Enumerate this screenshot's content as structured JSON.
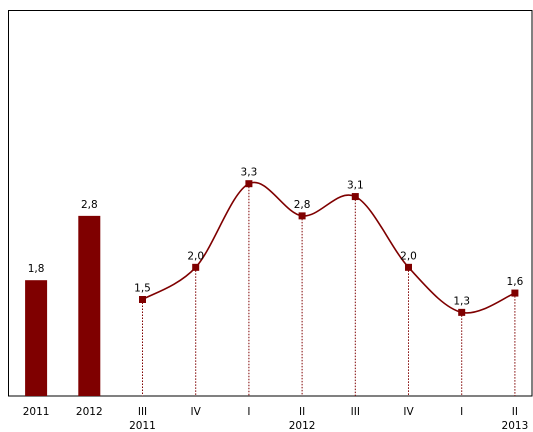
{
  "chart_data": {
    "type": "combo",
    "categories": [
      "2011",
      "2012",
      "III",
      "IV",
      "I",
      "II",
      "III",
      "IV",
      "I",
      "II"
    ],
    "sub_labels": [
      null,
      null,
      "2011",
      null,
      null,
      "2012",
      null,
      null,
      null,
      "2013"
    ],
    "ylim": [
      0,
      6
    ],
    "series": [
      {
        "type": "bar",
        "color": "#7f0000",
        "values": [
          1.8,
          2.8,
          null,
          null,
          null,
          null,
          null,
          null,
          null,
          null
        ],
        "value_labels": [
          "1,8",
          "2,8",
          null,
          null,
          null,
          null,
          null,
          null,
          null,
          null
        ]
      },
      {
        "type": "line",
        "color": "#7f0000",
        "values": [
          null,
          null,
          1.5,
          2.0,
          3.3,
          2.8,
          3.1,
          2.0,
          1.3,
          1.6
        ],
        "value_labels": [
          null,
          null,
          "1,5",
          "2,0",
          "3,3",
          "2,8",
          "3,1",
          "2,0",
          "1,3",
          "1,6"
        ]
      }
    ]
  }
}
